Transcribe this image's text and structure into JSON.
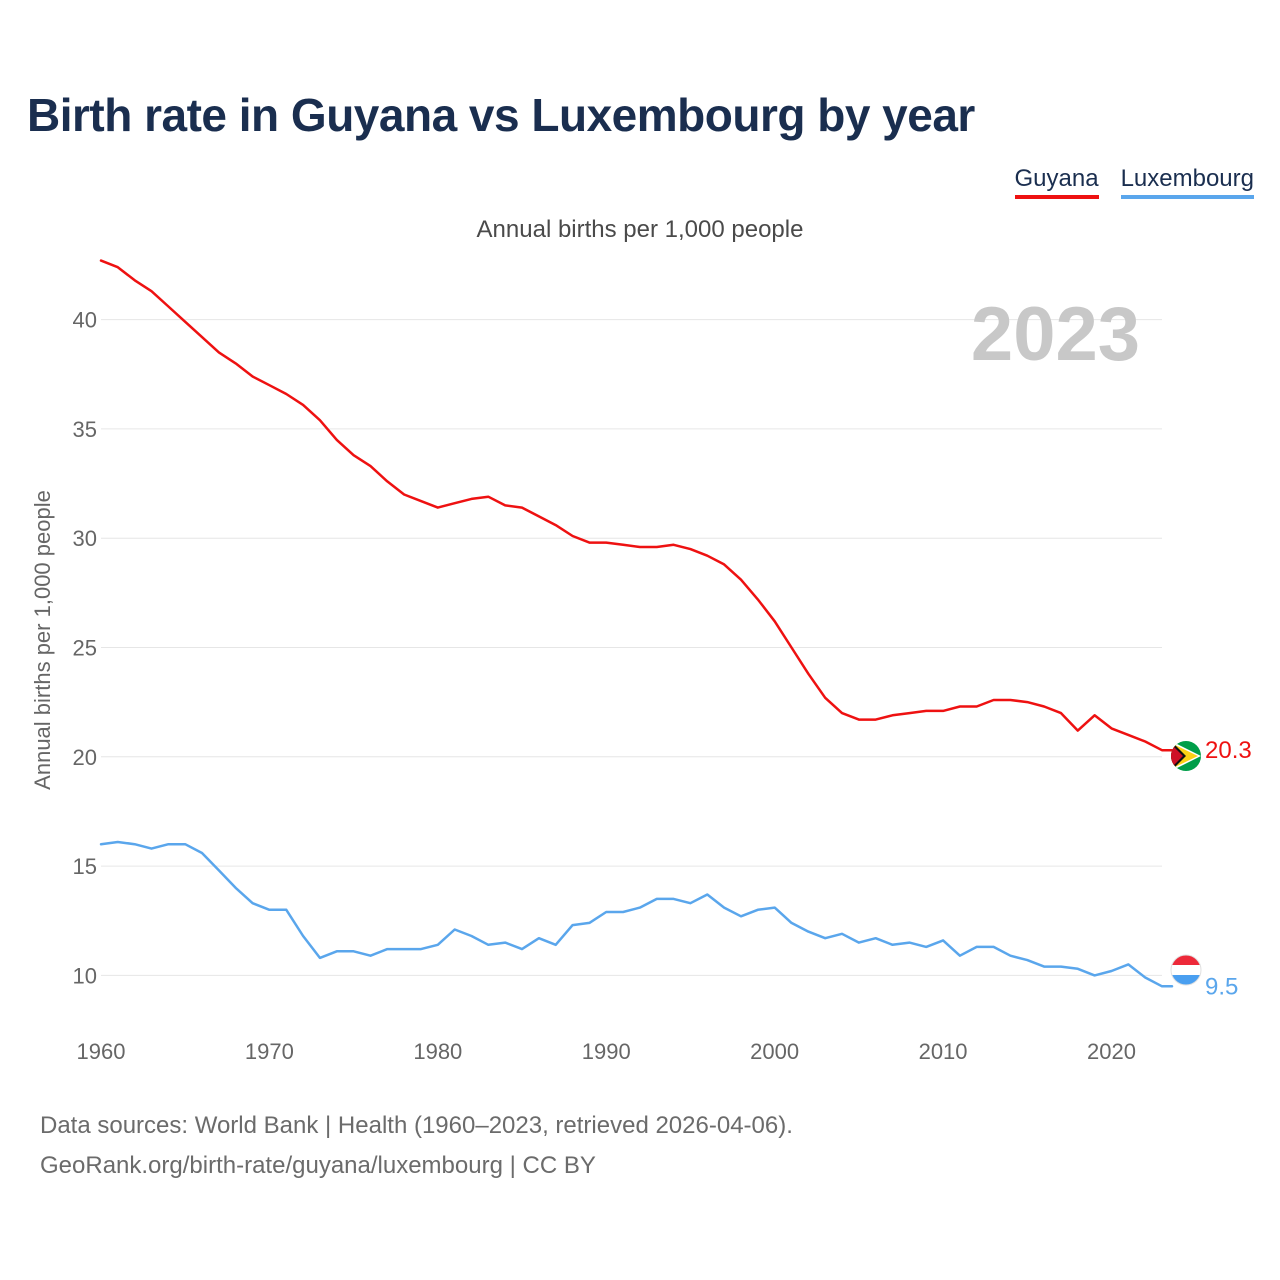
{
  "title": "Birth rate in Guyana vs Luxembourg by year",
  "legend": [
    {
      "name": "Guyana",
      "color": "#ee1111"
    },
    {
      "name": "Luxembourg",
      "color": "#5aa6ec"
    }
  ],
  "subtitle": "Annual births per 1,000 people",
  "year_label": "2023",
  "source_line1": "Data sources: World Bank | Health (1960–2023, retrieved 2026-04-06).",
  "source_line2": "GeoRank.org/birth-rate/guyana/luxembourg | CC BY",
  "chart_data": {
    "type": "line",
    "title": "Birth rate in Guyana vs Luxembourg by year",
    "ylabel": "Annual births per 1,000 people",
    "xlabel": "",
    "xlim": [
      1960,
      2023
    ],
    "ylim": [
      7.5,
      42.5
    ],
    "x_ticks": [
      1960,
      1970,
      1980,
      1990,
      2000,
      2010,
      2020
    ],
    "y_ticks": [
      10,
      15,
      20,
      25,
      30,
      35,
      40
    ],
    "grid": true,
    "x": [
      1960,
      1961,
      1962,
      1963,
      1964,
      1965,
      1966,
      1967,
      1968,
      1969,
      1970,
      1971,
      1972,
      1973,
      1974,
      1975,
      1976,
      1977,
      1978,
      1979,
      1980,
      1981,
      1982,
      1983,
      1984,
      1985,
      1986,
      1987,
      1988,
      1989,
      1990,
      1991,
      1992,
      1993,
      1994,
      1995,
      1996,
      1997,
      1998,
      1999,
      2000,
      2001,
      2002,
      2003,
      2004,
      2005,
      2006,
      2007,
      2008,
      2009,
      2010,
      2011,
      2012,
      2013,
      2014,
      2015,
      2016,
      2017,
      2018,
      2019,
      2020,
      2021,
      2022,
      2023
    ],
    "series": [
      {
        "name": "Guyana",
        "color": "#ee1111",
        "end_label": "20.3",
        "values": [
          42.7,
          42.4,
          41.8,
          41.3,
          40.6,
          39.9,
          39.2,
          38.5,
          38.0,
          37.4,
          37.0,
          36.6,
          36.1,
          35.4,
          34.5,
          33.8,
          33.3,
          32.6,
          32.0,
          31.7,
          31.4,
          31.6,
          31.8,
          31.9,
          31.5,
          31.4,
          31.0,
          30.6,
          30.1,
          29.8,
          29.8,
          29.7,
          29.6,
          29.6,
          29.7,
          29.5,
          29.2,
          28.8,
          28.1,
          27.2,
          26.2,
          25.0,
          23.8,
          22.7,
          22.0,
          21.7,
          21.7,
          21.9,
          22.0,
          22.1,
          22.1,
          22.3,
          22.3,
          22.6,
          22.6,
          22.5,
          22.3,
          22.0,
          21.2,
          21.9,
          21.3,
          21.0,
          20.7,
          20.3
        ]
      },
      {
        "name": "Luxembourg",
        "color": "#5aa6ec",
        "end_label": "9.5",
        "values": [
          16.0,
          16.1,
          16.0,
          15.8,
          16.0,
          16.0,
          15.6,
          14.8,
          14.0,
          13.3,
          13.0,
          13.0,
          11.8,
          10.8,
          11.1,
          11.1,
          10.9,
          11.2,
          11.2,
          11.2,
          11.4,
          12.1,
          11.8,
          11.4,
          11.5,
          11.2,
          11.7,
          11.4,
          12.3,
          12.4,
          12.9,
          12.9,
          13.1,
          13.5,
          13.5,
          13.3,
          13.7,
          13.1,
          12.7,
          13.0,
          13.1,
          12.4,
          12.0,
          11.7,
          11.9,
          11.5,
          11.7,
          11.4,
          11.5,
          11.3,
          11.6,
          10.9,
          11.3,
          11.3,
          10.9,
          10.7,
          10.4,
          10.4,
          10.3,
          10.0,
          10.2,
          10.5,
          9.9,
          9.5
        ]
      }
    ]
  }
}
